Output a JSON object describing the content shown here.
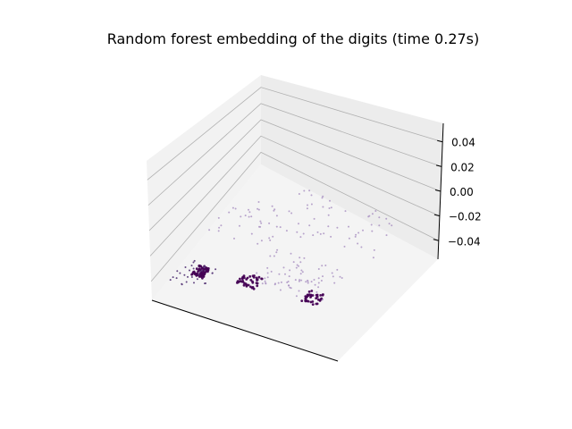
{
  "chart_data": {
    "type": "scatter",
    "projection": "3d",
    "title": "Random forest embedding of the digits (time 0.27s)",
    "zlim": [
      -0.055,
      0.055
    ],
    "z_ticks": [
      {
        "value": 0.04,
        "label": "0.04"
      },
      {
        "value": 0.02,
        "label": "0.02"
      },
      {
        "value": 0.0,
        "label": "0.00"
      },
      {
        "value": -0.02,
        "label": "−0.02"
      },
      {
        "value": -0.04,
        "label": "−0.04"
      }
    ],
    "grid": true,
    "x_ticks_visible": false,
    "y_ticks_visible": false,
    "colormap": "viridis (dark purple to light purple shades shown)",
    "colors": {
      "point_dark": "#440154",
      "point_mid": "#5b3c7a",
      "point_light": "#a88fc0",
      "pane_back": "#ececec",
      "pane_left": "#f2f2f2",
      "pane_floor": "#f4f4f4",
      "grid": "#b0b0b0",
      "axis": "#000000"
    },
    "clusters": [
      {
        "name": "",
        "shade": "dark",
        "count": 60,
        "x": [
          0.08,
          0.14
        ],
        "y": [
          0.22,
          0.3
        ],
        "z": [
          0.0,
          0.0
        ]
      },
      {
        "name": "",
        "shade": "dark",
        "count": 45,
        "x": [
          0.3,
          0.4
        ],
        "y": [
          0.26,
          0.34
        ],
        "z": [
          0.0,
          0.0
        ]
      },
      {
        "name": "",
        "shade": "dark",
        "count": 40,
        "x": [
          0.64,
          0.72
        ],
        "y": [
          0.28,
          0.36
        ],
        "z": [
          0.0,
          0.0
        ]
      },
      {
        "name": "",
        "shade": "mid",
        "count": 30,
        "x": [
          0.0,
          0.18
        ],
        "y": [
          0.15,
          0.32
        ],
        "z": [
          0.0,
          0.0
        ]
      },
      {
        "name": "",
        "shade": "light",
        "count": 70,
        "x": [
          0.35,
          0.75
        ],
        "y": [
          0.3,
          0.55
        ],
        "z": [
          0.0,
          0.0
        ]
      },
      {
        "name": "",
        "shade": "light",
        "count": 55,
        "x": [
          0.25,
          0.8
        ],
        "y": [
          0.65,
          0.95
        ],
        "z": [
          0.0,
          0.0
        ]
      },
      {
        "name": "",
        "shade": "light",
        "count": 35,
        "x": [
          0.0,
          0.3
        ],
        "y": [
          0.5,
          0.8
        ],
        "z": [
          0.0,
          0.0
        ]
      }
    ]
  }
}
